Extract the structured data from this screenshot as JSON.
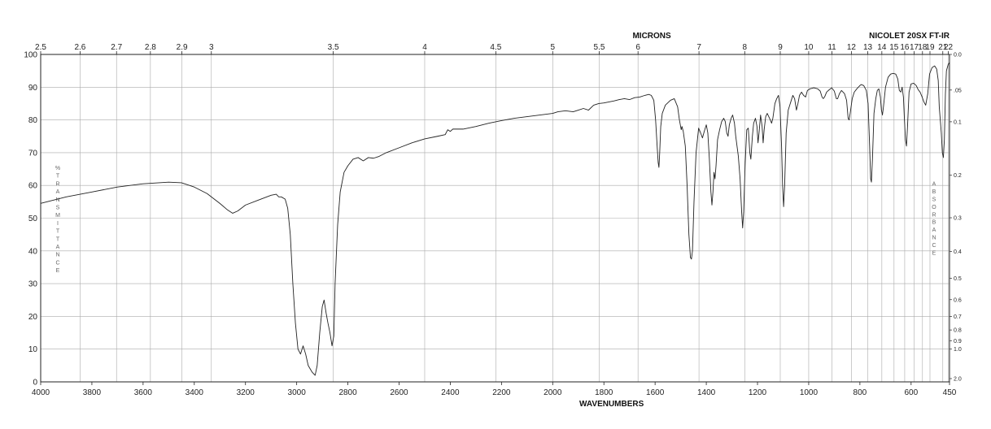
{
  "chart_data": {
    "type": "line",
    "instrument": "NICOLET 20SX FT-IR",
    "xlabel_bottom": "WAVENUMBERS",
    "xlabel_top": "MICRONS",
    "ylabel_left": "%TRANSMITTANCE",
    "ylabel_right": "ABSORBANCE",
    "xlim": [
      4000,
      450
    ],
    "ylim": [
      0,
      100
    ],
    "grid": true,
    "x_ticks_bottom": [
      4000,
      3800,
      3600,
      3400,
      3200,
      3000,
      2800,
      2600,
      2400,
      2200,
      2000,
      1800,
      1600,
      1400,
      1200,
      1000,
      800,
      600,
      450
    ],
    "x_ticks_top": [
      {
        "label": "2.5",
        "um": 2.5
      },
      {
        "label": "2.6",
        "um": 2.6
      },
      {
        "label": "2.7",
        "um": 2.7
      },
      {
        "label": "2.8",
        "um": 2.8
      },
      {
        "label": "2.9",
        "um": 2.9
      },
      {
        "label": "3",
        "um": 3.0
      },
      {
        "label": "3.5",
        "um": 3.5
      },
      {
        "label": "4",
        "um": 4.0
      },
      {
        "label": "4.5",
        "um": 4.5
      },
      {
        "label": "5",
        "um": 5.0
      },
      {
        "label": "5.5",
        "um": 5.5
      },
      {
        "label": "6",
        "um": 6.0
      },
      {
        "label": "7",
        "um": 7.0
      },
      {
        "label": "8",
        "um": 8.0
      },
      {
        "label": "9",
        "um": 9.0
      },
      {
        "label": "10",
        "um": 10.0
      },
      {
        "label": "11",
        "um": 11.0
      },
      {
        "label": "12",
        "um": 12.0
      },
      {
        "label": "13",
        "um": 13.0
      },
      {
        "label": "14",
        "um": 14.0
      },
      {
        "label": "15",
        "um": 15.0
      },
      {
        "label": "16",
        "um": 16.0
      },
      {
        "label": "17",
        "um": 17.0
      },
      {
        "label": "18",
        "um": 18.0
      },
      {
        "label": "19",
        "um": 19.0
      },
      {
        "label": "21",
        "um": 21.0
      },
      {
        "label": "22",
        "um": 22.0
      }
    ],
    "y_ticks": [
      0,
      10,
      20,
      30,
      40,
      50,
      60,
      70,
      80,
      90,
      100
    ],
    "absorbance_ticks": [
      {
        "label": "0.0",
        "A": 0.0
      },
      {
        "label": ".05",
        "A": 0.05
      },
      {
        "label": "0.1",
        "A": 0.1
      },
      {
        "label": "0.2",
        "A": 0.2
      },
      {
        "label": "0.3",
        "A": 0.3
      },
      {
        "label": "0.4",
        "A": 0.4
      },
      {
        "label": "0.5",
        "A": 0.5
      },
      {
        "label": "0.6",
        "A": 0.6
      },
      {
        "label": "0.7",
        "A": 0.7
      },
      {
        "label": "0.8",
        "A": 0.8
      },
      {
        "label": "0.9",
        "A": 0.9
      },
      {
        "label": "1.0",
        "A": 1.0
      },
      {
        "label": "2.0",
        "A": 2.0
      }
    ],
    "series": [
      {
        "points": [
          [
            4000,
            54.5
          ],
          [
            3900,
            56.5
          ],
          [
            3800,
            58
          ],
          [
            3700,
            59.5
          ],
          [
            3600,
            60.5
          ],
          [
            3500,
            61
          ],
          [
            3450,
            60.8
          ],
          [
            3400,
            59.5
          ],
          [
            3350,
            57.5
          ],
          [
            3300,
            54.5
          ],
          [
            3270,
            52.5
          ],
          [
            3250,
            51.5
          ],
          [
            3230,
            52.2
          ],
          [
            3200,
            54
          ],
          [
            3150,
            55.5
          ],
          [
            3100,
            57
          ],
          [
            3080,
            57.3
          ],
          [
            3070,
            56.5
          ],
          [
            3060,
            56.5
          ],
          [
            3045,
            55.8
          ],
          [
            3035,
            53
          ],
          [
            3025,
            45
          ],
          [
            3015,
            30
          ],
          [
            3005,
            18
          ],
          [
            2995,
            10
          ],
          [
            2985,
            8.5
          ],
          [
            2975,
            11
          ],
          [
            2965,
            8.5
          ],
          [
            2955,
            5
          ],
          [
            2940,
            3
          ],
          [
            2928,
            2
          ],
          [
            2920,
            5
          ],
          [
            2910,
            15
          ],
          [
            2900,
            23
          ],
          [
            2893,
            25
          ],
          [
            2885,
            21
          ],
          [
            2878,
            18
          ],
          [
            2870,
            15
          ],
          [
            2862,
            11
          ],
          [
            2855,
            14
          ],
          [
            2850,
            30
          ],
          [
            2840,
            48
          ],
          [
            2830,
            58
          ],
          [
            2815,
            64
          ],
          [
            2800,
            66
          ],
          [
            2780,
            68
          ],
          [
            2760,
            68.5
          ],
          [
            2740,
            67.5
          ],
          [
            2720,
            68.5
          ],
          [
            2700,
            68.3
          ],
          [
            2680,
            68.8
          ],
          [
            2650,
            70
          ],
          [
            2600,
            71.5
          ],
          [
            2550,
            73
          ],
          [
            2500,
            74.2
          ],
          [
            2450,
            75
          ],
          [
            2420,
            75.5
          ],
          [
            2410,
            77
          ],
          [
            2400,
            76.5
          ],
          [
            2390,
            77.2
          ],
          [
            2350,
            77.2
          ],
          [
            2300,
            78
          ],
          [
            2250,
            79
          ],
          [
            2200,
            79.8
          ],
          [
            2150,
            80.5
          ],
          [
            2100,
            81
          ],
          [
            2050,
            81.5
          ],
          [
            2000,
            82
          ],
          [
            1980,
            82.5
          ],
          [
            1950,
            82.8
          ],
          [
            1920,
            82.5
          ],
          [
            1900,
            83
          ],
          [
            1880,
            83.5
          ],
          [
            1860,
            83
          ],
          [
            1840,
            84.5
          ],
          [
            1820,
            85
          ],
          [
            1800,
            85.2
          ],
          [
            1780,
            85.5
          ],
          [
            1760,
            85.8
          ],
          [
            1740,
            86.2
          ],
          [
            1720,
            86.5
          ],
          [
            1700,
            86.2
          ],
          [
            1680,
            86.8
          ],
          [
            1660,
            87
          ],
          [
            1640,
            87.5
          ],
          [
            1625,
            87.8
          ],
          [
            1615,
            87.5
          ],
          [
            1605,
            86
          ],
          [
            1598,
            80
          ],
          [
            1592,
            72
          ],
          [
            1588,
            67
          ],
          [
            1585,
            65.5
          ],
          [
            1582,
            70
          ],
          [
            1578,
            78
          ],
          [
            1572,
            82
          ],
          [
            1560,
            84.5
          ],
          [
            1540,
            86
          ],
          [
            1525,
            86.5
          ],
          [
            1512,
            84
          ],
          [
            1505,
            80
          ],
          [
            1498,
            77
          ],
          [
            1495,
            78
          ],
          [
            1490,
            76.5
          ],
          [
            1482,
            72
          ],
          [
            1475,
            60
          ],
          [
            1468,
            45
          ],
          [
            1462,
            38
          ],
          [
            1458,
            37.5
          ],
          [
            1454,
            40
          ],
          [
            1448,
            55
          ],
          [
            1440,
            70
          ],
          [
            1430,
            77.5
          ],
          [
            1422,
            76
          ],
          [
            1415,
            74.5
          ],
          [
            1408,
            76.5
          ],
          [
            1400,
            78.5
          ],
          [
            1394,
            76
          ],
          [
            1388,
            68
          ],
          [
            1382,
            58
          ],
          [
            1378,
            54
          ],
          [
            1374,
            58
          ],
          [
            1370,
            64
          ],
          [
            1366,
            62
          ],
          [
            1362,
            66
          ],
          [
            1356,
            74
          ],
          [
            1348,
            77
          ],
          [
            1340,
            79.5
          ],
          [
            1332,
            80.5
          ],
          [
            1326,
            79.5
          ],
          [
            1320,
            76
          ],
          [
            1315,
            75
          ],
          [
            1310,
            78.5
          ],
          [
            1303,
            80.5
          ],
          [
            1297,
            81.5
          ],
          [
            1290,
            79
          ],
          [
            1285,
            75
          ],
          [
            1280,
            72
          ],
          [
            1275,
            69
          ],
          [
            1268,
            62
          ],
          [
            1262,
            52
          ],
          [
            1258,
            47
          ],
          [
            1254,
            52
          ],
          [
            1248,
            67
          ],
          [
            1242,
            77
          ],
          [
            1236,
            77.5
          ],
          [
            1230,
            70
          ],
          [
            1226,
            68
          ],
          [
            1220,
            75
          ],
          [
            1215,
            79
          ],
          [
            1208,
            80.5
          ],
          [
            1202,
            78
          ],
          [
            1198,
            73
          ],
          [
            1194,
            76
          ],
          [
            1188,
            81.5
          ],
          [
            1182,
            78
          ],
          [
            1178,
            73
          ],
          [
            1174,
            77
          ],
          [
            1168,
            81
          ],
          [
            1162,
            82
          ],
          [
            1156,
            81
          ],
          [
            1150,
            80
          ],
          [
            1145,
            79
          ],
          [
            1140,
            80.5
          ],
          [
            1132,
            85
          ],
          [
            1125,
            86.5
          ],
          [
            1118,
            87.5
          ],
          [
            1112,
            84
          ],
          [
            1106,
            72
          ],
          [
            1102,
            60
          ],
          [
            1098,
            53.5
          ],
          [
            1094,
            60
          ],
          [
            1088,
            76
          ],
          [
            1080,
            83
          ],
          [
            1070,
            85.5
          ],
          [
            1062,
            87.5
          ],
          [
            1055,
            86.5
          ],
          [
            1048,
            83
          ],
          [
            1042,
            85
          ],
          [
            1036,
            87.5
          ],
          [
            1028,
            88.5
          ],
          [
            1020,
            87.5
          ],
          [
            1012,
            87
          ],
          [
            1005,
            89
          ],
          [
            995,
            89.5
          ],
          [
            980,
            89.8
          ],
          [
            965,
            89.5
          ],
          [
            955,
            88.8
          ],
          [
            948,
            87
          ],
          [
            943,
            86.5
          ],
          [
            938,
            87
          ],
          [
            930,
            88.5
          ],
          [
            920,
            89.2
          ],
          [
            910,
            89.8
          ],
          [
            900,
            88.8
          ],
          [
            892,
            86.5
          ],
          [
            887,
            86.5
          ],
          [
            880,
            88
          ],
          [
            872,
            89
          ],
          [
            866,
            88.5
          ],
          [
            860,
            88
          ],
          [
            852,
            86
          ],
          [
            846,
            80.5
          ],
          [
            842,
            80
          ],
          [
            838,
            82
          ],
          [
            830,
            86.5
          ],
          [
            822,
            88.5
          ],
          [
            812,
            89.5
          ],
          [
            800,
            90.5
          ],
          [
            795,
            90.8
          ],
          [
            785,
            90.5
          ],
          [
            775,
            89
          ],
          [
            768,
            85
          ],
          [
            762,
            72
          ],
          [
            758,
            62
          ],
          [
            755,
            61
          ],
          [
            751,
            68
          ],
          [
            745,
            82
          ],
          [
            738,
            86.5
          ],
          [
            732,
            89
          ],
          [
            726,
            89.5
          ],
          [
            720,
            87
          ],
          [
            716,
            83
          ],
          [
            712,
            81.5
          ],
          [
            708,
            84
          ],
          [
            700,
            90
          ],
          [
            690,
            93
          ],
          [
            680,
            94
          ],
          [
            670,
            94.2
          ],
          [
            660,
            94
          ],
          [
            652,
            92.5
          ],
          [
            646,
            89
          ],
          [
            640,
            88.5
          ],
          [
            635,
            90
          ],
          [
            630,
            87
          ],
          [
            626,
            80
          ],
          [
            622,
            74
          ],
          [
            618,
            72
          ],
          [
            614,
            78
          ],
          [
            608,
            88.5
          ],
          [
            600,
            91
          ],
          [
            590,
            91.2
          ],
          [
            580,
            90.5
          ],
          [
            572,
            89.2
          ],
          [
            565,
            88.5
          ],
          [
            558,
            87.2
          ],
          [
            550,
            85.5
          ],
          [
            543,
            84.5
          ],
          [
            535,
            88
          ],
          [
            528,
            94
          ],
          [
            518,
            96
          ],
          [
            508,
            96.5
          ],
          [
            500,
            95.5
          ],
          [
            494,
            92
          ],
          [
            490,
            84
          ],
          [
            486,
            80
          ],
          [
            482,
            76
          ],
          [
            478,
            70
          ],
          [
            474,
            68.5
          ],
          [
            470,
            74
          ],
          [
            466,
            88
          ],
          [
            462,
            95
          ],
          [
            455,
            97
          ],
          [
            450,
            97.5
          ]
        ]
      }
    ]
  }
}
